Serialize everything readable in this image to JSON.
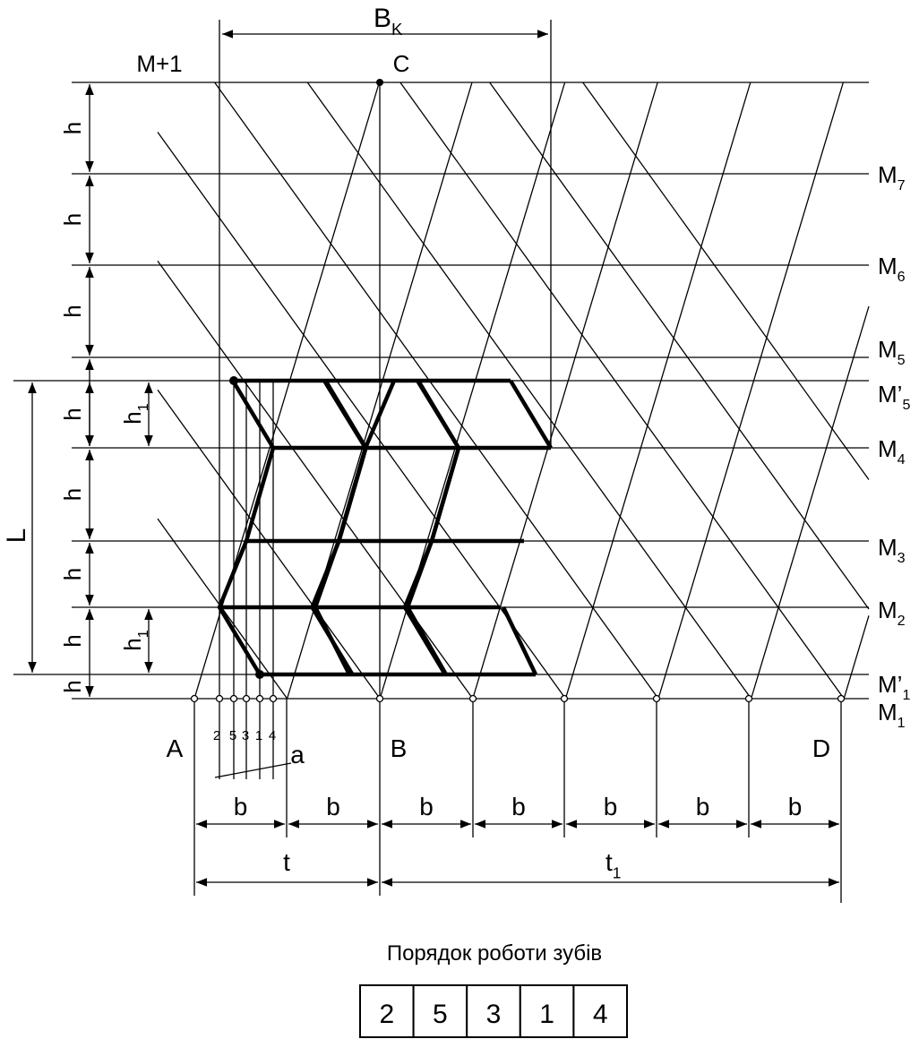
{
  "top": {
    "bk": {
      "base": "B",
      "sub": "K"
    },
    "m_plus_1": "M+1",
    "c": "C"
  },
  "h_labels": [
    "h",
    "h",
    "h",
    "h",
    "h",
    "h",
    "h",
    "h"
  ],
  "h1_labels": [
    {
      "base": "h",
      "sub": "1"
    },
    {
      "base": "h",
      "sub": "1"
    }
  ],
  "l": "L",
  "levels": [
    {
      "base": "M",
      "sub": "7"
    },
    {
      "base": "M",
      "sub": "6"
    },
    {
      "base": "M",
      "sub": "5"
    },
    {
      "base": "M’",
      "sub": "5"
    },
    {
      "base": "M",
      "sub": "4"
    },
    {
      "base": "M",
      "sub": "3"
    },
    {
      "base": "M",
      "sub": "2"
    },
    {
      "base": "M’",
      "sub": "1"
    },
    {
      "base": "M",
      "sub": "1"
    }
  ],
  "points": {
    "a": "A",
    "b": "B",
    "d": "D"
  },
  "tooth_marks": [
    "2",
    "5",
    "3",
    "1",
    "4"
  ],
  "a_label": "a",
  "b_labels": [
    "b",
    "b",
    "b",
    "b",
    "b",
    "b",
    "b"
  ],
  "t": "t",
  "t1": {
    "base": "t",
    "sub": "1"
  },
  "order": {
    "title": "Порядок роботи зубів",
    "cells": [
      "2",
      "5",
      "3",
      "1",
      "4"
    ]
  }
}
